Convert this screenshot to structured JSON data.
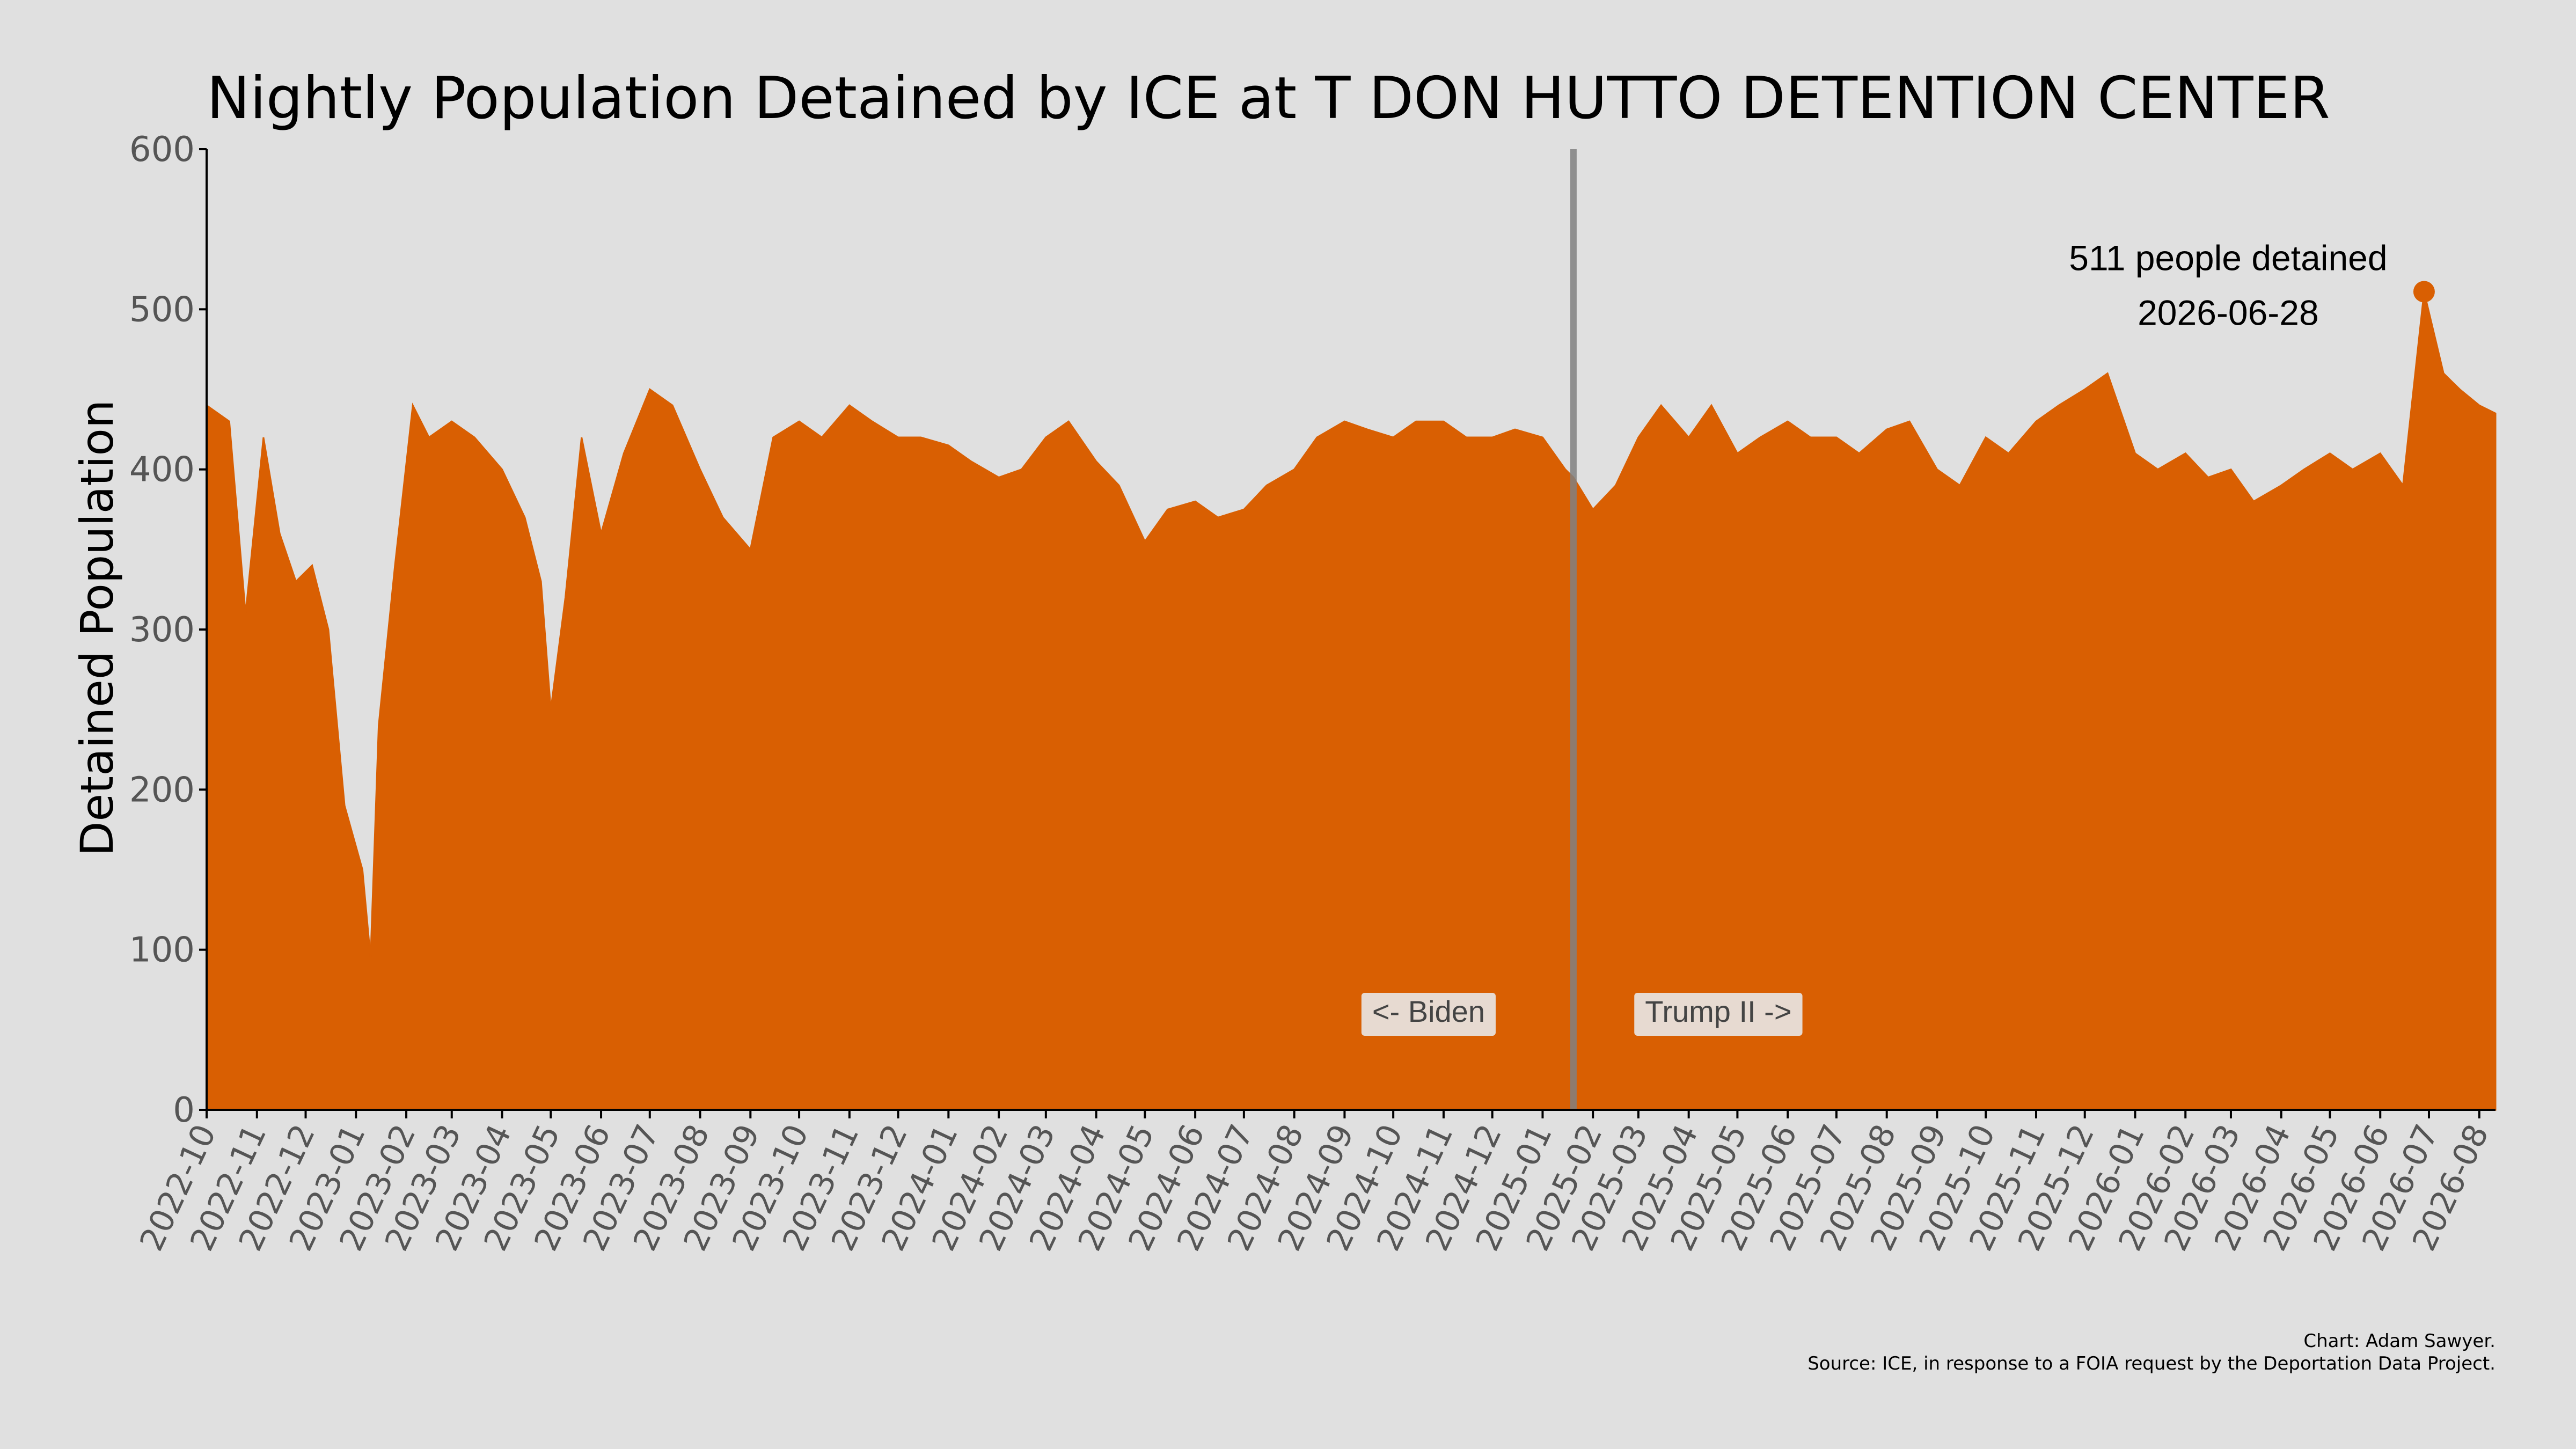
{
  "chart_data": {
    "type": "area",
    "title": "Nightly Population Detained by ICE at T DON HUTTO DETENTION CENTER",
    "xlabel": "",
    "ylabel": "Detained Population",
    "ylim": [
      0,
      600
    ],
    "y_ticks": [
      "0",
      "100",
      "200",
      "300",
      "400",
      "500",
      "600"
    ],
    "x_range": [
      "2022-10-01",
      "2026-08-11"
    ],
    "x_ticks": [
      "2022-10",
      "2022-11",
      "2022-12",
      "2023-01",
      "2023-02",
      "2023-03",
      "2023-04",
      "2023-05",
      "2023-06",
      "2023-07",
      "2023-08",
      "2023-09",
      "2023-10",
      "2023-11",
      "2023-12",
      "2024-01",
      "2024-02",
      "2024-03",
      "2024-04",
      "2024-05",
      "2024-06",
      "2024-07",
      "2024-08",
      "2024-09",
      "2024-10",
      "2024-11",
      "2024-12",
      "2025-01",
      "2025-02",
      "2025-03",
      "2025-04",
      "2025-05",
      "2025-06",
      "2025-07",
      "2025-08",
      "2025-09",
      "2025-10",
      "2025-11",
      "2025-12",
      "2026-01",
      "2026-02",
      "2026-03",
      "2026-04",
      "2026-05",
      "2026-06",
      "2026-07",
      "2026-08"
    ],
    "grid": false,
    "colors": {
      "fill": "#d95f02",
      "divider": "#808080",
      "background": "#e0e0e0"
    },
    "series": [
      {
        "x": [
          "2022-10-01",
          "2022-10-15",
          "2022-10-25",
          "2022-11-05",
          "2022-11-15",
          "2022-11-25",
          "2022-12-05",
          "2022-12-15",
          "2022-12-25",
          "2023-01-05",
          "2023-01-10",
          "2023-01-15",
          "2023-01-25",
          "2023-02-05",
          "2023-02-15",
          "2023-03-01",
          "2023-03-15",
          "2023-04-01",
          "2023-04-15",
          "2023-04-25",
          "2023-05-01",
          "2023-05-10",
          "2023-05-20",
          "2023-06-01",
          "2023-06-15",
          "2023-07-01",
          "2023-07-15",
          "2023-08-01",
          "2023-08-15",
          "2023-09-01",
          "2023-09-15",
          "2023-10-01",
          "2023-10-15",
          "2023-11-01",
          "2023-11-15",
          "2023-12-01",
          "2023-12-15",
          "2024-01-01",
          "2024-01-15",
          "2024-02-01",
          "2024-02-15",
          "2024-03-01",
          "2024-03-15",
          "2024-04-01",
          "2024-04-15",
          "2024-05-01",
          "2024-05-15",
          "2024-06-01",
          "2024-06-15",
          "2024-07-01",
          "2024-07-15",
          "2024-08-01",
          "2024-08-15",
          "2024-09-01",
          "2024-09-15",
          "2024-10-01",
          "2024-10-15",
          "2024-11-01",
          "2024-11-15",
          "2024-12-01",
          "2024-12-15",
          "2025-01-01",
          "2025-01-15",
          "2025-01-20",
          "2025-02-01",
          "2025-02-15",
          "2025-03-01",
          "2025-03-15",
          "2025-04-01",
          "2025-04-15",
          "2025-05-01",
          "2025-05-15",
          "2025-06-01",
          "2025-06-15",
          "2025-07-01",
          "2025-07-15",
          "2025-08-01",
          "2025-08-15",
          "2025-09-01",
          "2025-09-15",
          "2025-10-01",
          "2025-10-15",
          "2025-11-01",
          "2025-11-15",
          "2025-12-01",
          "2025-12-15",
          "2026-01-01",
          "2026-01-15",
          "2026-02-01",
          "2026-02-15",
          "2026-03-01",
          "2026-03-15",
          "2026-04-01",
          "2026-04-15",
          "2026-05-01",
          "2026-05-15",
          "2026-06-01",
          "2026-06-15",
          "2026-06-28",
          "2026-07-10",
          "2026-07-20",
          "2026-08-01",
          "2026-08-11"
        ],
        "values": [
          440,
          430,
          310,
          420,
          360,
          330,
          340,
          300,
          190,
          150,
          95,
          240,
          340,
          440,
          420,
          430,
          420,
          400,
          370,
          330,
          250,
          320,
          420,
          360,
          410,
          450,
          440,
          400,
          370,
          350,
          420,
          430,
          420,
          440,
          430,
          420,
          420,
          415,
          405,
          395,
          400,
          420,
          430,
          405,
          390,
          355,
          375,
          380,
          370,
          375,
          390,
          400,
          420,
          430,
          425,
          420,
          430,
          430,
          420,
          420,
          425,
          420,
          400,
          395,
          375,
          390,
          420,
          440,
          420,
          440,
          410,
          420,
          430,
          420,
          420,
          410,
          425,
          430,
          400,
          390,
          420,
          410,
          430,
          440,
          450,
          460,
          410,
          400,
          410,
          395,
          400,
          380,
          390,
          400,
          410,
          400,
          410,
          390,
          511,
          460,
          450,
          440,
          435
        ]
      }
    ],
    "annotations": {
      "peak_line1": "511 people detained",
      "peak_line2": "2026-06-28",
      "peak_value": 511,
      "peak_date": "2026-06-28",
      "divider_date": "2025-01-20",
      "left_era": "<- Biden",
      "right_era": "Trump II ->"
    }
  },
  "caption": {
    "line1": "Chart: Adam Sawyer.",
    "line2": "Source: ICE, in response to a FOIA request by the Deportation Data Project."
  }
}
